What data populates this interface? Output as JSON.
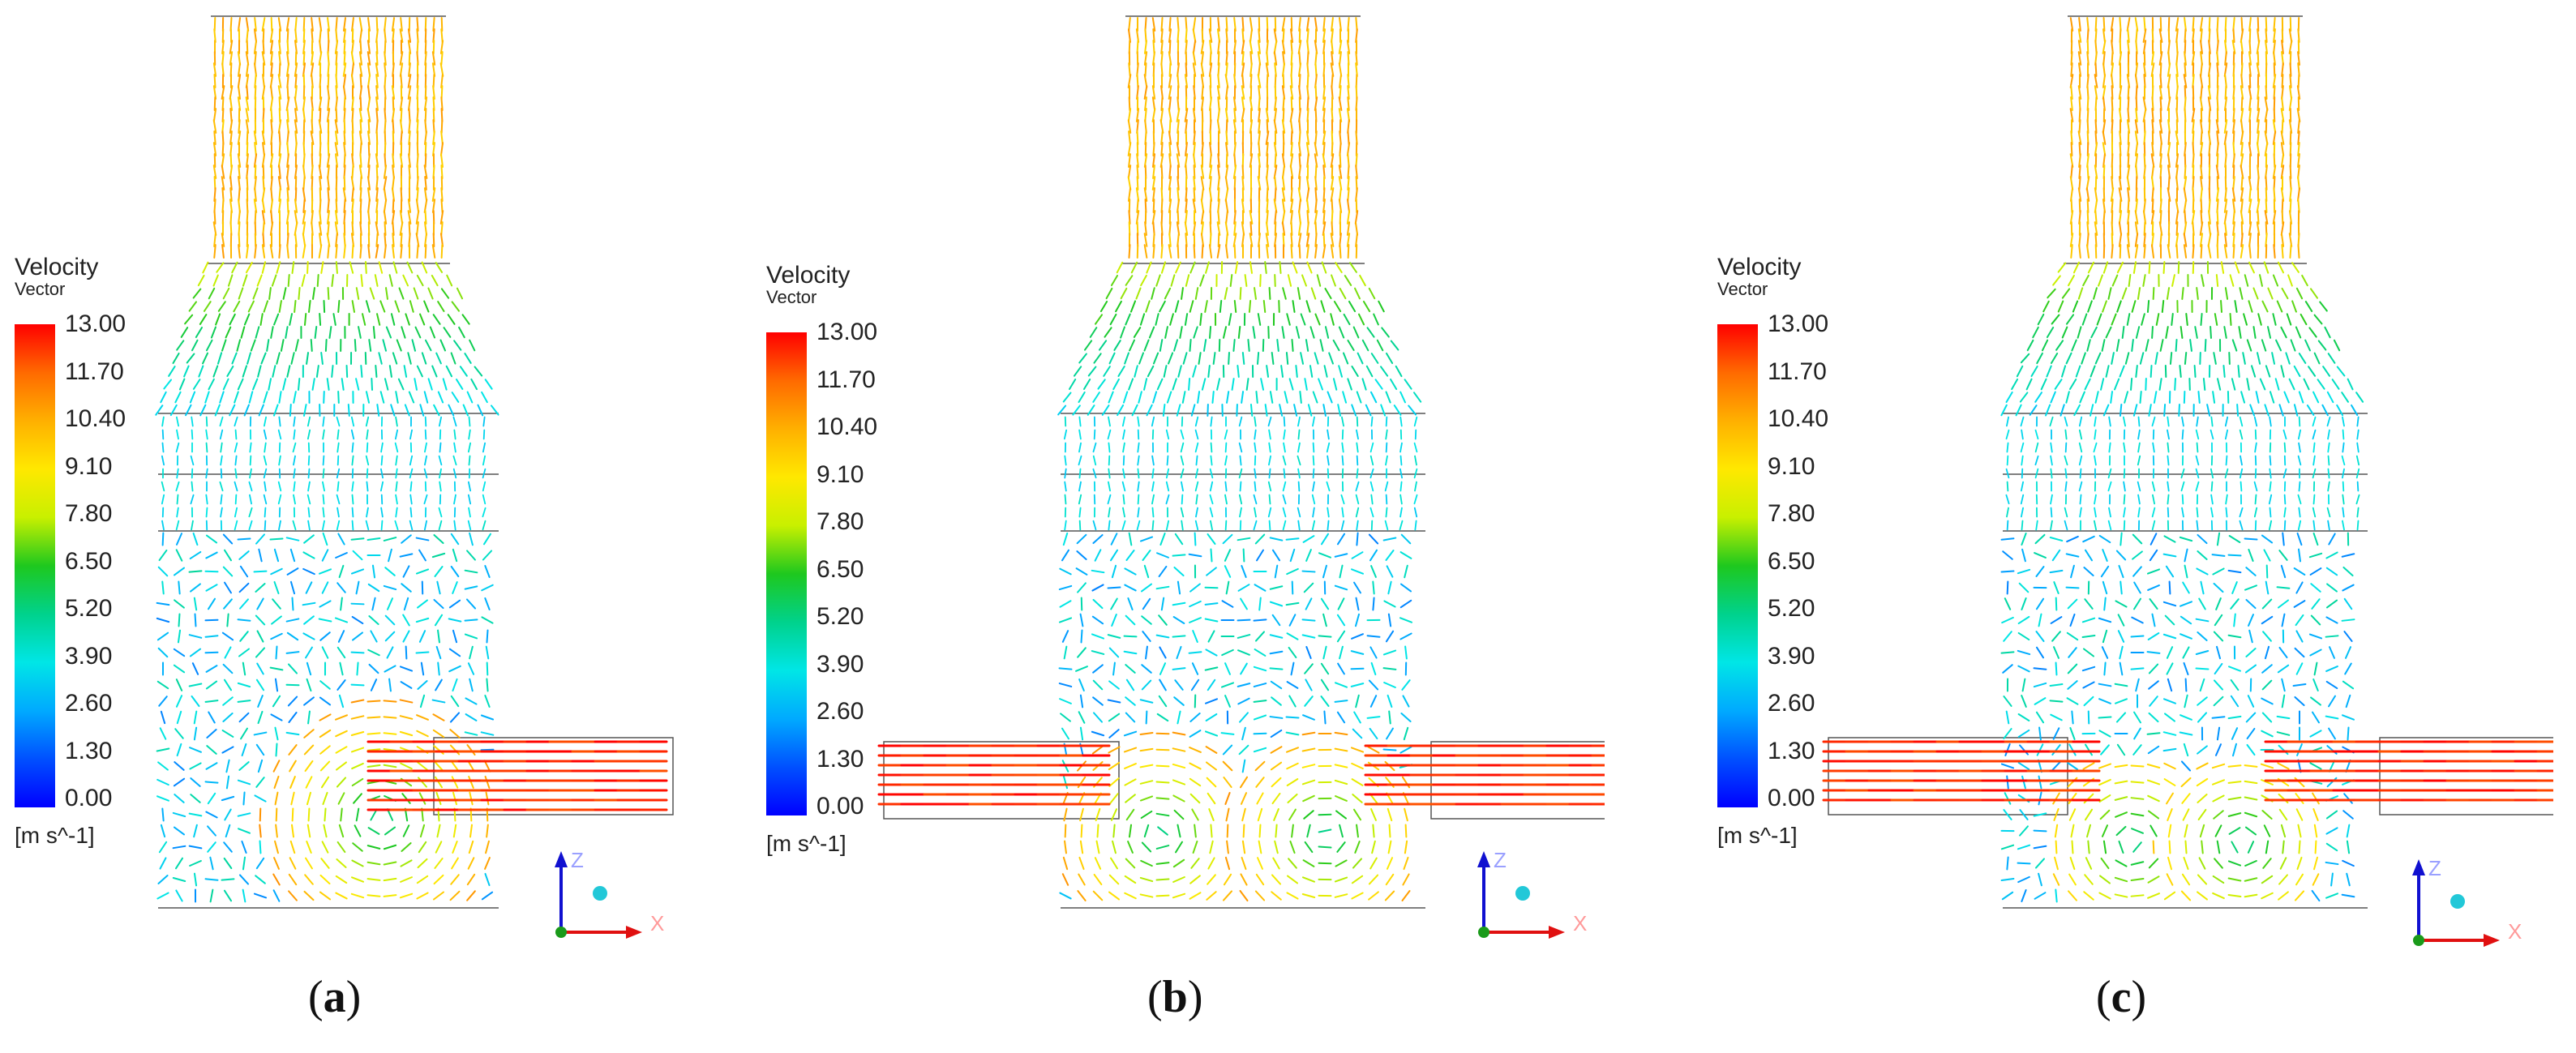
{
  "legend": {
    "title": "Velocity",
    "subtitle": "Vector",
    "ticks": [
      "13.00",
      "11.70",
      "10.40",
      "9.10",
      "7.80",
      "6.50",
      "5.20",
      "3.90",
      "2.60",
      "1.30",
      "0.00"
    ],
    "unit": "[m s^-1]",
    "range": [
      0,
      13
    ],
    "colormap": [
      "#0000ff",
      "#0050ff",
      "#00aaff",
      "#00e6e6",
      "#00d28c",
      "#1ec81e",
      "#c8f000",
      "#ffe800",
      "#ffb000",
      "#ff6a00",
      "#ff0000"
    ]
  },
  "axes": {
    "z_label": "Z",
    "x_label": "X"
  },
  "panels": [
    {
      "id": "a",
      "caption_open": "(",
      "caption_letter": "a",
      "caption_close": ")"
    },
    {
      "id": "b",
      "caption_open": "(",
      "caption_letter": "b",
      "caption_close": ")"
    },
    {
      "id": "c",
      "caption_open": "(",
      "caption_letter": "c",
      "caption_close": ")"
    }
  ]
}
